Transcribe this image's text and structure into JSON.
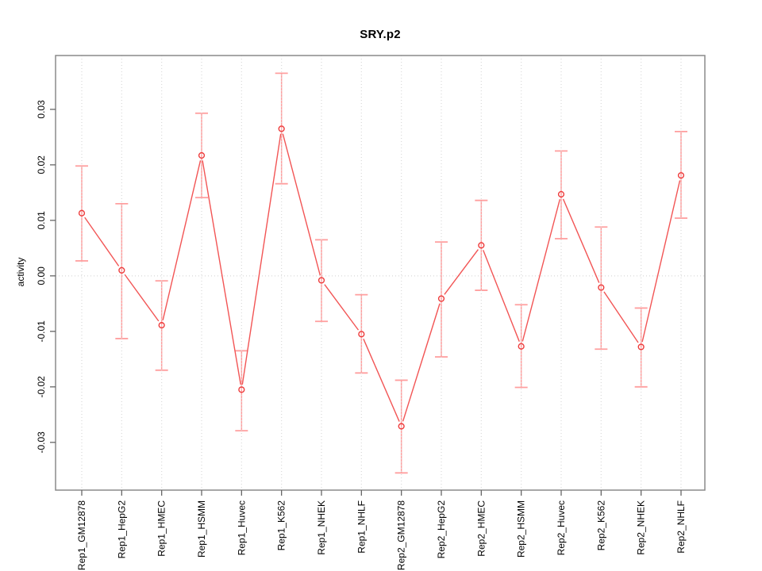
{
  "chart_data": {
    "type": "line",
    "title": "SRY.p2",
    "xlabel": "",
    "ylabel": "activity",
    "categories": [
      "Rep1_GM12878",
      "Rep1_HepG2",
      "Rep1_HMEC",
      "Rep1_HSMM",
      "Rep1_Huvec",
      "Rep1_K562",
      "Rep1_NHEK",
      "Rep1_NHLF",
      "Rep2_GM12878",
      "Rep2_HepG2",
      "Rep2_HMEC",
      "Rep2_HSMM",
      "Rep2_Huvec",
      "Rep2_K562",
      "Rep2_NHEK",
      "Rep2_NHLF"
    ],
    "series": [
      {
        "name": "activity",
        "values": [
          0.0113,
          0.001,
          -0.0089,
          0.0217,
          -0.0205,
          0.0265,
          -0.0008,
          -0.0105,
          -0.0271,
          -0.0041,
          0.0055,
          -0.0127,
          0.0147,
          -0.0021,
          -0.0128,
          0.0181
        ],
        "err_low": [
          0.0027,
          -0.0113,
          -0.017,
          0.0141,
          -0.0279,
          0.0166,
          -0.0082,
          -0.0175,
          -0.0355,
          -0.0146,
          -0.0026,
          -0.0201,
          0.0067,
          -0.0132,
          -0.02,
          0.0104
        ],
        "err_high": [
          0.0198,
          0.013,
          -0.0009,
          0.0293,
          -0.0135,
          0.0365,
          0.0065,
          -0.0034,
          -0.0188,
          0.0061,
          0.0136,
          -0.0052,
          0.0225,
          0.0088,
          -0.0058,
          0.026
        ]
      }
    ],
    "y_ticks": [
      "-0.03",
      "-0.02",
      "-0.01",
      "0.00",
      "0.01",
      "0.02",
      "0.03"
    ],
    "ylim": [
      -0.0386,
      0.0397
    ],
    "grid": {
      "vertical_dotted_at_each_category": true,
      "horizontal_dotted_at_zero": true,
      "other_horizontal_gridlines": false
    },
    "legend": "none",
    "marker": "open-circle",
    "colors": {
      "series_line": "#f25555",
      "marker_stroke": "#ee3b3b",
      "error_bar": "#ff9f9f",
      "grid_line": "#d9d9d9",
      "plot_border": "#8a8a8a",
      "tick_mark": "#666666",
      "tick_label": "#000000",
      "background": "#ffffff"
    }
  }
}
